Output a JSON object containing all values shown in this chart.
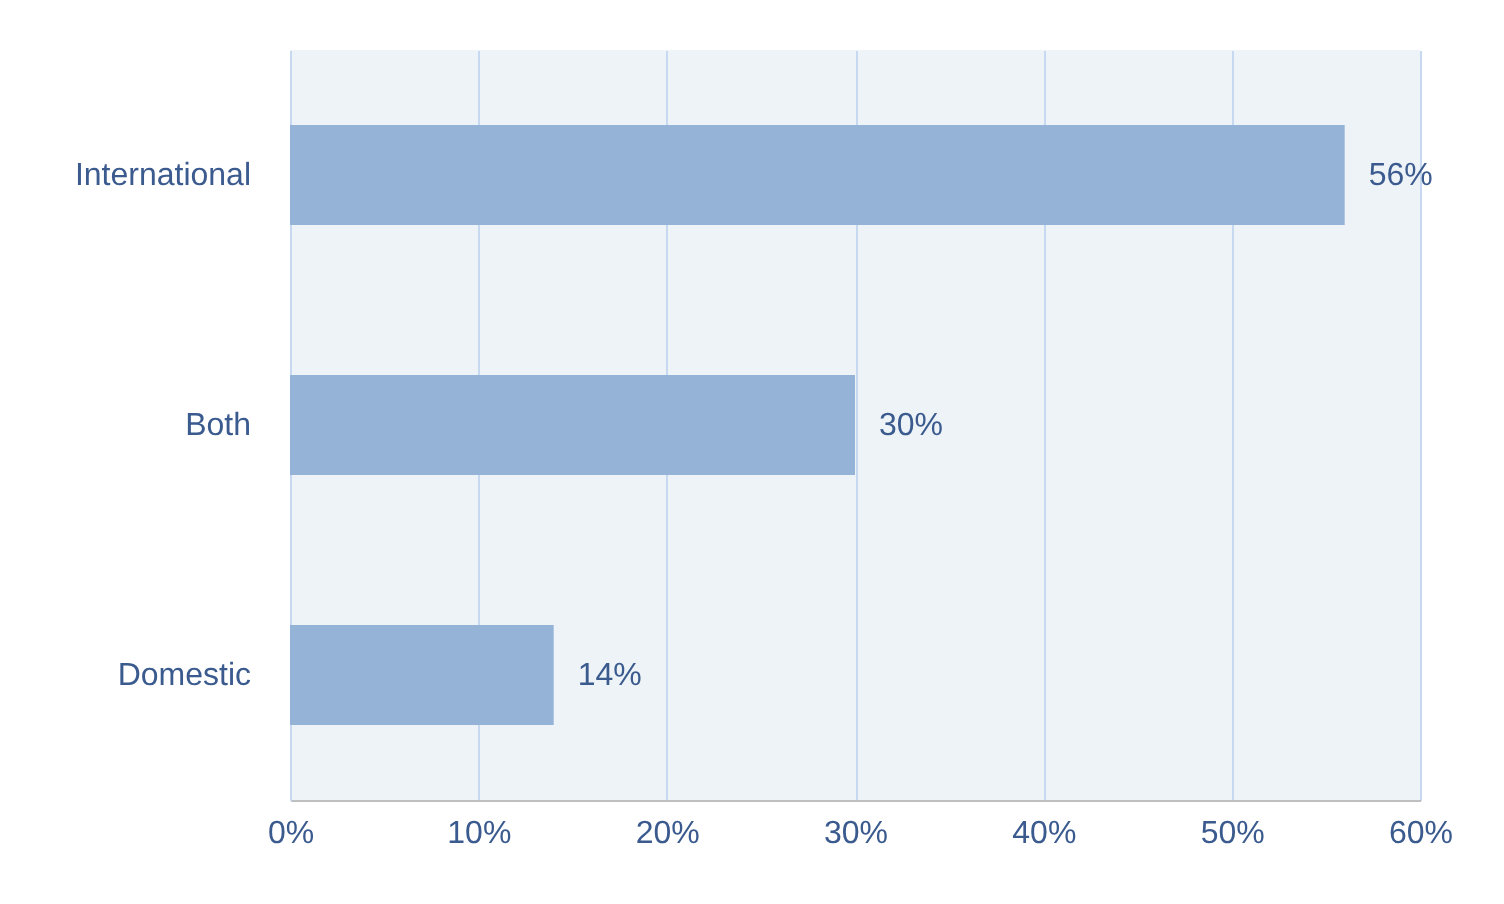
{
  "chart_data": {
    "type": "bar",
    "orientation": "horizontal",
    "categories": [
      "International",
      "Both",
      "Domestic"
    ],
    "values": [
      56,
      30,
      14
    ],
    "value_labels": [
      "56%",
      "30%",
      "14%"
    ],
    "color": "#95b3d7",
    "xlim": [
      0,
      60
    ],
    "xticks": [
      {
        "value": 0,
        "label": "0%"
      },
      {
        "value": 10,
        "label": "10%"
      },
      {
        "value": 20,
        "label": "20%"
      },
      {
        "value": 30,
        "label": "30%"
      },
      {
        "value": 40,
        "label": "40%"
      },
      {
        "value": 50,
        "label": "50%"
      },
      {
        "value": 60,
        "label": "60%"
      }
    ],
    "grid": "x"
  }
}
